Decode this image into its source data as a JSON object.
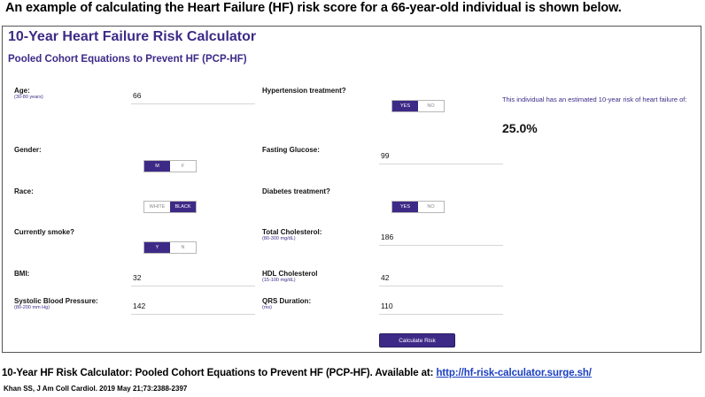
{
  "header_caption": "An example of calculating the Heart Failure (HF) risk score for a 66-year-old individual is shown below.",
  "calculator": {
    "title": "10-Year Heart Failure Risk Calculator",
    "subtitle": "Pooled Cohort Equations to Prevent HF (PCP-HF)",
    "fields": {
      "age": {
        "label": "Age:",
        "hint": "(30-80 years)",
        "value": "66"
      },
      "gender": {
        "label": "Gender:",
        "options": [
          "M",
          "F"
        ],
        "selected": "M"
      },
      "race": {
        "label": "Race:",
        "options": [
          "WHITE",
          "BLACK"
        ],
        "selected": "BLACK"
      },
      "smoke": {
        "label": "Currently smoke?",
        "options": [
          "Y",
          "N"
        ],
        "selected": "Y"
      },
      "bmi": {
        "label": "BMI:",
        "value": "32"
      },
      "sbp": {
        "label": "Systolic Blood Pressure:",
        "hint": "(80-200 mm Hg)",
        "value": "142"
      },
      "htn_treatment": {
        "label": "Hypertension treatment?",
        "options": [
          "YES",
          "NO"
        ],
        "selected": "YES"
      },
      "glucose": {
        "label": "Fasting Glucose:",
        "value": "99"
      },
      "diabetes_treatment": {
        "label": "Diabetes treatment?",
        "options": [
          "YES",
          "NO"
        ],
        "selected": "YES"
      },
      "total_chol": {
        "label": "Total Cholesterol:",
        "hint": "(80-300 mg/dL)",
        "value": "186"
      },
      "hdl": {
        "label": "HDL Cholesterol",
        "hint": "(15-100 mg/dL)",
        "value": "42"
      },
      "qrs": {
        "label": "QRS Duration:",
        "hint": "(ms)",
        "value": "110"
      }
    },
    "result": {
      "text": "This individual has an estimated 10-year risk of heart failure of:",
      "value": "25.0%"
    },
    "calculate_label": "Calculate Risk"
  },
  "footer_caption": {
    "text": "10-Year HF Risk Calculator: Pooled Cohort Equations to Prevent HF (PCP-HF). Available at: ",
    "link": "http://hf-risk-calculator.surge.sh/"
  },
  "citation": "Khan SS, J Am Coll Cardiol. 2019 May 21;73:2388-2397",
  "colors": {
    "accent": "#3d2a87",
    "link": "#1a3fc2"
  }
}
